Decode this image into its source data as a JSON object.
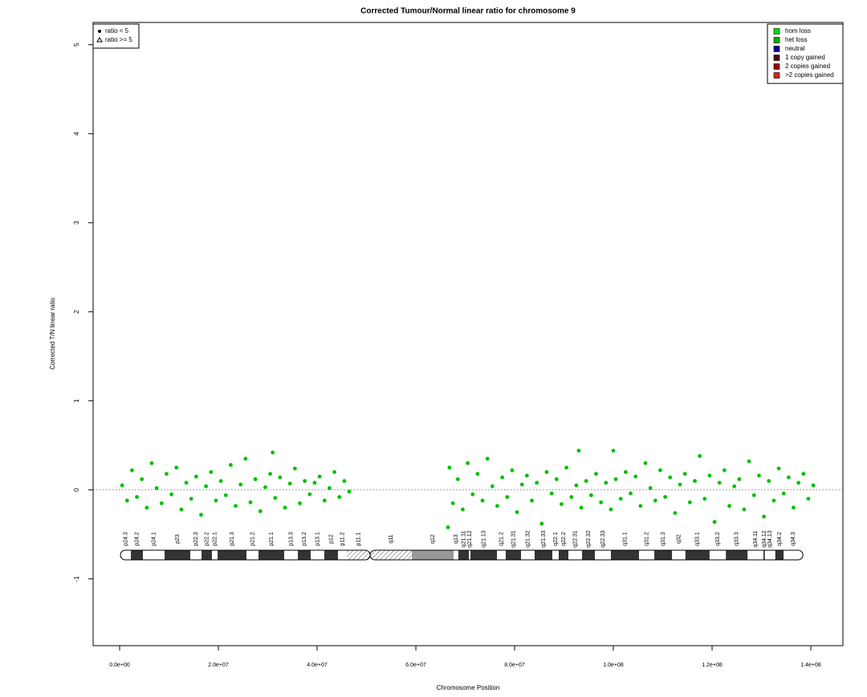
{
  "chart_data": {
    "type": "scatter",
    "title": "Corrected Tumour/Normal linear ratio for chromosome  9",
    "x_label": "Chromosome Position",
    "y_label": "Corrected T/N linear ratio",
    "xlim": [
      -5370000,
      146500000
    ],
    "ylim": [
      -1.75,
      5.25
    ],
    "xticks": [
      {
        "value": 0,
        "label": "0.0e+00"
      },
      {
        "value": 20000000,
        "label": "2.0e+07"
      },
      {
        "value": 40000000,
        "label": "4.0e+07"
      },
      {
        "value": 60000000,
        "label": "6.0e+07"
      },
      {
        "value": 80000000,
        "label": "8.0e+07"
      },
      {
        "value": 100000000,
        "label": "1.0e+08"
      },
      {
        "value": 120000000,
        "label": "1.2e+08"
      },
      {
        "value": 140000000,
        "label": "1.4e+08"
      }
    ],
    "yticks": [
      -1,
      0,
      1,
      2,
      3,
      4,
      5
    ],
    "reference_line": 0,
    "color": "#00c000",
    "x": [
      500000.0,
      1500000.0,
      2500000.0,
      3500000.0,
      4500000.0,
      5500000.0,
      6500000.0,
      7500000.0,
      8500000.0,
      9500000.0,
      10500000.0,
      11500000.0,
      12500000.0,
      13500000.0,
      14500000.0,
      15500000.0,
      16500000.0,
      17500000.0,
      18500000.0,
      19500000.0,
      20500000.0,
      21500000.0,
      22500000.0,
      23500000.0,
      24500000.0,
      25500000.0,
      26500000.0,
      27500000.0,
      28500000.0,
      29500000.0,
      30500000.0,
      31000000.0,
      31500000.0,
      32500000.0,
      33500000.0,
      34500000.0,
      35500000.0,
      36500000.0,
      37500000.0,
      38500000.0,
      39500000.0,
      40500000.0,
      41500000.0,
      42500000.0,
      43500000.0,
      44500000.0,
      45500000.0,
      46500000.0,
      66500000.0,
      66800000.0,
      67500000.0,
      68500000.0,
      69500000.0,
      70500000.0,
      71500000.0,
      72500000.0,
      73500000.0,
      74500000.0,
      75500000.0,
      76500000.0,
      77500000.0,
      78500000.0,
      79500000.0,
      80500000.0,
      81500000.0,
      82500000.0,
      83500000.0,
      84500000.0,
      85500000.0,
      86500000.0,
      87500000.0,
      88500000.0,
      89500000.0,
      90500000.0,
      91500000.0,
      92500000.0,
      93000000.0,
      93500000.0,
      94500000.0,
      95500000.0,
      96500000.0,
      97500000.0,
      98500000.0,
      99500000.0,
      100000000.0,
      100500000.0,
      101500000.0,
      102500000.0,
      103500000.0,
      104500000.0,
      105500000.0,
      106500000.0,
      107500000.0,
      108500000.0,
      109500000.0,
      110500000.0,
      111500000.0,
      112500000.0,
      113500000.0,
      114500000.0,
      115500000.0,
      116500000.0,
      117500000.0,
      118500000.0,
      119500000.0,
      120500000.0,
      121500000.0,
      122500000.0,
      123500000.0,
      124500000.0,
      125500000.0,
      126500000.0,
      127500000.0,
      128500000.0,
      129500000.0,
      130500000.0,
      131500000.0,
      132500000.0,
      133500000.0,
      134500000.0,
      135500000.0,
      136500000.0,
      137500000.0,
      138500000.0,
      139500000.0,
      140500000.0
    ],
    "values": [
      0.05,
      -0.12,
      0.22,
      -0.08,
      0.12,
      -0.2,
      0.3,
      0.02,
      -0.15,
      0.18,
      -0.05,
      0.25,
      -0.22,
      0.08,
      -0.1,
      0.15,
      -0.28,
      0.04,
      0.2,
      -0.12,
      0.1,
      -0.06,
      0.28,
      -0.18,
      0.06,
      0.35,
      -0.14,
      0.12,
      -0.24,
      0.03,
      0.18,
      0.42,
      -0.09,
      0.14,
      -0.2,
      0.07,
      0.24,
      -0.15,
      0.1,
      -0.05,
      0.08,
      0.15,
      -0.12,
      0.02,
      0.2,
      -0.08,
      0.1,
      -0.02,
      -0.42,
      0.25,
      -0.15,
      0.12,
      -0.22,
      0.3,
      -0.05,
      0.18,
      -0.12,
      0.35,
      0.04,
      -0.18,
      0.14,
      -0.08,
      0.22,
      -0.25,
      0.06,
      0.16,
      -0.12,
      0.08,
      -0.38,
      0.2,
      -0.04,
      0.12,
      -0.16,
      0.25,
      -0.08,
      0.05,
      0.44,
      -0.2,
      0.1,
      -0.06,
      0.18,
      -0.14,
      0.08,
      -0.22,
      0.44,
      0.12,
      -0.1,
      0.2,
      -0.04,
      0.15,
      -0.18,
      0.3,
      0.02,
      -0.12,
      0.22,
      -0.08,
      0.14,
      -0.26,
      0.06,
      0.18,
      -0.14,
      0.1,
      0.38,
      -0.1,
      0.16,
      -0.36,
      0.08,
      0.22,
      -0.18,
      0.04,
      0.12,
      -0.22,
      0.32,
      -0.06,
      0.16,
      -0.3,
      0.1,
      -0.12,
      0.24,
      -0.04,
      0.14,
      -0.2,
      0.08,
      0.18,
      -0.1,
      0.05
    ],
    "shape_legend": [
      "ratio < 5",
      "ratio >= 5"
    ],
    "legend": [
      {
        "label": "hom loss",
        "color": "#00e000"
      },
      {
        "label": "het loss",
        "color": "#00b000"
      },
      {
        "label": "neutral",
        "color": "#0000a0"
      },
      {
        "label": "1 copy gained",
        "color": "#600000"
      },
      {
        "label": "2 copies gained",
        "color": "#a00000"
      },
      {
        "label": ">2 copies gained",
        "color": "#e02020"
      }
    ],
    "bands": [
      {
        "name": "p24.3",
        "start": 160000.0,
        "end": 2280000.0,
        "stain": "gneg"
      },
      {
        "name": "p24.2",
        "start": 2280000.0,
        "end": 4720000.0,
        "stain": "gpos"
      },
      {
        "name": "p24.1",
        "start": 4720000.0,
        "end": 9110000.0,
        "stain": "gneg"
      },
      {
        "name": "p23",
        "start": 9110000.0,
        "end": 14310000.0,
        "stain": "gpos"
      },
      {
        "name": "p22.3",
        "start": 14310000.0,
        "end": 16590000.0,
        "stain": "gneg"
      },
      {
        "name": "p22.2",
        "start": 16590000.0,
        "end": 18700000.0,
        "stain": "gpos"
      },
      {
        "name": "p22.1",
        "start": 18700000.0,
        "end": 19840000.0,
        "stain": "gneg"
      },
      {
        "name": "p21.3",
        "start": 19840000.0,
        "end": 25690000.0,
        "stain": "gpos"
      },
      {
        "name": "p21.2",
        "start": 25690000.0,
        "end": 28130000.0,
        "stain": "gneg"
      },
      {
        "name": "p21.1",
        "start": 28130000.0,
        "end": 33330000.0,
        "stain": "gpos"
      },
      {
        "name": "p13.3",
        "start": 33330000.0,
        "end": 36100000.0,
        "stain": "gneg"
      },
      {
        "name": "p13.2",
        "start": 36100000.0,
        "end": 38700000.0,
        "stain": "gpos"
      },
      {
        "name": "p13.1",
        "start": 38700000.0,
        "end": 41460000.0,
        "stain": "gneg"
      },
      {
        "name": "p12",
        "start": 41460000.0,
        "end": 44230000.0,
        "stain": "gpos"
      },
      {
        "name": "p11.2",
        "start": 44230000.0,
        "end": 46020000.0,
        "stain": "gneg"
      },
      {
        "name": "p11.1",
        "start": 46020000.0,
        "end": 50730000.0,
        "stain": "acen"
      },
      {
        "name": "q11",
        "start": 50730000.0,
        "end": 59190000.0,
        "stain": "acen"
      },
      {
        "name": "q12",
        "start": 59190000.0,
        "end": 67640000.0,
        "stain": "gvar"
      },
      {
        "name": "q13",
        "start": 67640000.0,
        "end": 68620000.0,
        "stain": "gneg"
      },
      {
        "name": "q21.11",
        "start": 68620000.0,
        "end": 70730000.0,
        "stain": "gpos"
      },
      {
        "name": "q21.12",
        "start": 70730000.0,
        "end": 71060000.0,
        "stain": "gneg"
      },
      {
        "name": "q21.13",
        "start": 71060000.0,
        "end": 76420000.0,
        "stain": "gpos"
      },
      {
        "name": "q21.2",
        "start": 76420000.0,
        "end": 78210000.0,
        "stain": "gneg"
      },
      {
        "name": "q21.31",
        "start": 78210000.0,
        "end": 81300000.0,
        "stain": "gpos"
      },
      {
        "name": "q21.32",
        "start": 81300000.0,
        "end": 84060000.0,
        "stain": "gneg"
      },
      {
        "name": "q21.33",
        "start": 84060000.0,
        "end": 87640000.0,
        "stain": "gpos"
      },
      {
        "name": "q22.1",
        "start": 87640000.0,
        "end": 88940000.0,
        "stain": "gneg"
      },
      {
        "name": "q22.2",
        "start": 88940000.0,
        "end": 90890000.0,
        "stain": "gpos"
      },
      {
        "name": "q22.31",
        "start": 90890000.0,
        "end": 93660000.0,
        "stain": "gneg"
      },
      {
        "name": "q22.32",
        "start": 93660000.0,
        "end": 96260000.0,
        "stain": "gpos"
      },
      {
        "name": "q22.33",
        "start": 96260000.0,
        "end": 99510000.0,
        "stain": "gneg"
      },
      {
        "name": "q31.1",
        "start": 99510000.0,
        "end": 105200000.0,
        "stain": "gpos"
      },
      {
        "name": "q31.2",
        "start": 105200000.0,
        "end": 108300000.0,
        "stain": "gneg"
      },
      {
        "name": "q31.3",
        "start": 108300000.0,
        "end": 111900000.0,
        "stain": "gpos"
      },
      {
        "name": "q32",
        "start": 111900000.0,
        "end": 114600000.0,
        "stain": "gneg"
      },
      {
        "name": "q33.1",
        "start": 114600000.0,
        "end": 119500000.0,
        "stain": "gpos"
      },
      {
        "name": "q33.2",
        "start": 119500000.0,
        "end": 122800000.0,
        "stain": "gneg"
      },
      {
        "name": "q33.3",
        "start": 122800000.0,
        "end": 127200000.0,
        "stain": "gpos"
      },
      {
        "name": "q34.11",
        "start": 127200000.0,
        "end": 130400000.0,
        "stain": "gneg"
      },
      {
        "name": "q34.12",
        "start": 130400000.0,
        "end": 130700000.0,
        "stain": "gpos"
      },
      {
        "name": "q34.13",
        "start": 130700000.0,
        "end": 132800000.0,
        "stain": "gneg"
      },
      {
        "name": "q34.2",
        "start": 132800000.0,
        "end": 134500000.0,
        "stain": "gpos"
      },
      {
        "name": "q34.3",
        "start": 134500000.0,
        "end": 138400000.0,
        "stain": "gneg"
      }
    ]
  }
}
